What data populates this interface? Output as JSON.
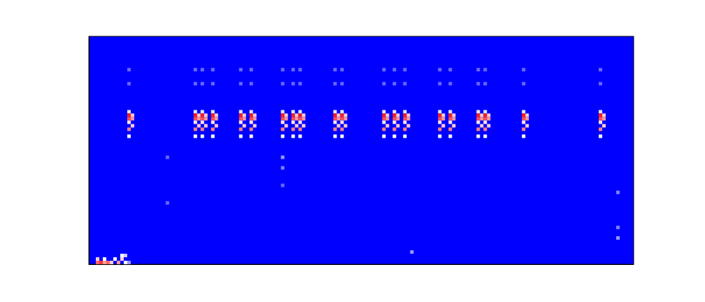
{
  "chart_data": {
    "type": "heatmap",
    "xlim": [
      0,
      156
    ],
    "ylim": [
      0,
      65
    ],
    "xticks": [],
    "yticks": [],
    "tick_labels": false,
    "grid": false,
    "color_range": [
      0,
      1
    ],
    "cells": [
      [
        11,
        55,
        0.2
      ],
      [
        11,
        51,
        0.2
      ],
      [
        11,
        43,
        0.45
      ],
      [
        11,
        42,
        0.95
      ],
      [
        12,
        42,
        0.6
      ],
      [
        11,
        41,
        0.85
      ],
      [
        12,
        41,
        0.7
      ],
      [
        11,
        40,
        0.55
      ],
      [
        12,
        39,
        0.6
      ],
      [
        11,
        38,
        0.75
      ],
      [
        11,
        36,
        0.5
      ],
      [
        30,
        55,
        0.2
      ],
      [
        30,
        51,
        0.2
      ],
      [
        30,
        43,
        0.45
      ],
      [
        30,
        42,
        0.95
      ],
      [
        31,
        42,
        0.6
      ],
      [
        30,
        41,
        0.85
      ],
      [
        31,
        41,
        0.7
      ],
      [
        30,
        40,
        0.55
      ],
      [
        31,
        39,
        0.6
      ],
      [
        30,
        38,
        0.75
      ],
      [
        30,
        36,
        0.5
      ],
      [
        32,
        55,
        0.2
      ],
      [
        32,
        51,
        0.2
      ],
      [
        32,
        43,
        0.45
      ],
      [
        32,
        42,
        0.95
      ],
      [
        33,
        42,
        0.6
      ],
      [
        32,
        41,
        0.85
      ],
      [
        33,
        41,
        0.7
      ],
      [
        32,
        40,
        0.55
      ],
      [
        33,
        39,
        0.6
      ],
      [
        32,
        38,
        0.75
      ],
      [
        32,
        36,
        0.5
      ],
      [
        35,
        55,
        0.2
      ],
      [
        35,
        51,
        0.2
      ],
      [
        35,
        43,
        0.45
      ],
      [
        35,
        42,
        0.95
      ],
      [
        36,
        42,
        0.6
      ],
      [
        35,
        41,
        0.85
      ],
      [
        36,
        41,
        0.7
      ],
      [
        35,
        40,
        0.55
      ],
      [
        36,
        39,
        0.6
      ],
      [
        35,
        38,
        0.75
      ],
      [
        35,
        36,
        0.5
      ],
      [
        43,
        55,
        0.2
      ],
      [
        43,
        51,
        0.2
      ],
      [
        43,
        43,
        0.45
      ],
      [
        43,
        42,
        0.95
      ],
      [
        44,
        42,
        0.6
      ],
      [
        43,
        41,
        0.85
      ],
      [
        44,
        41,
        0.7
      ],
      [
        43,
        40,
        0.55
      ],
      [
        44,
        39,
        0.6
      ],
      [
        43,
        38,
        0.75
      ],
      [
        43,
        36,
        0.5
      ],
      [
        46,
        55,
        0.2
      ],
      [
        46,
        51,
        0.2
      ],
      [
        46,
        43,
        0.45
      ],
      [
        46,
        42,
        0.95
      ],
      [
        47,
        42,
        0.6
      ],
      [
        46,
        41,
        0.85
      ],
      [
        47,
        41,
        0.7
      ],
      [
        46,
        40,
        0.55
      ],
      [
        47,
        39,
        0.6
      ],
      [
        46,
        38,
        0.75
      ],
      [
        46,
        36,
        0.5
      ],
      [
        55,
        55,
        0.2
      ],
      [
        55,
        51,
        0.2
      ],
      [
        55,
        43,
        0.45
      ],
      [
        55,
        42,
        0.95
      ],
      [
        56,
        42,
        0.6
      ],
      [
        55,
        41,
        0.85
      ],
      [
        56,
        41,
        0.7
      ],
      [
        55,
        40,
        0.55
      ],
      [
        56,
        39,
        0.6
      ],
      [
        55,
        38,
        0.75
      ],
      [
        55,
        36,
        0.5
      ],
      [
        58,
        55,
        0.2
      ],
      [
        58,
        51,
        0.2
      ],
      [
        58,
        43,
        0.45
      ],
      [
        58,
        42,
        0.95
      ],
      [
        59,
        42,
        0.6
      ],
      [
        58,
        41,
        0.85
      ],
      [
        59,
        41,
        0.7
      ],
      [
        58,
        40,
        0.55
      ],
      [
        59,
        39,
        0.6
      ],
      [
        58,
        38,
        0.75
      ],
      [
        58,
        36,
        0.5
      ],
      [
        60,
        55,
        0.2
      ],
      [
        60,
        51,
        0.2
      ],
      [
        60,
        43,
        0.45
      ],
      [
        60,
        42,
        0.95
      ],
      [
        61,
        42,
        0.6
      ],
      [
        60,
        41,
        0.85
      ],
      [
        61,
        41,
        0.7
      ],
      [
        60,
        40,
        0.55
      ],
      [
        61,
        39,
        0.6
      ],
      [
        60,
        38,
        0.75
      ],
      [
        60,
        36,
        0.5
      ],
      [
        70,
        55,
        0.2
      ],
      [
        70,
        51,
        0.2
      ],
      [
        70,
        43,
        0.45
      ],
      [
        70,
        42,
        0.95
      ],
      [
        71,
        42,
        0.6
      ],
      [
        70,
        41,
        0.85
      ],
      [
        71,
        41,
        0.7
      ],
      [
        70,
        40,
        0.55
      ],
      [
        71,
        39,
        0.6
      ],
      [
        70,
        38,
        0.75
      ],
      [
        70,
        36,
        0.5
      ],
      [
        72,
        55,
        0.2
      ],
      [
        72,
        51,
        0.2
      ],
      [
        72,
        43,
        0.45
      ],
      [
        72,
        42,
        0.95
      ],
      [
        73,
        42,
        0.6
      ],
      [
        72,
        41,
        0.85
      ],
      [
        73,
        41,
        0.7
      ],
      [
        72,
        40,
        0.55
      ],
      [
        73,
        39,
        0.6
      ],
      [
        72,
        38,
        0.75
      ],
      [
        72,
        36,
        0.5
      ],
      [
        84,
        55,
        0.2
      ],
      [
        84,
        51,
        0.2
      ],
      [
        84,
        43,
        0.45
      ],
      [
        84,
        42,
        0.95
      ],
      [
        85,
        42,
        0.6
      ],
      [
        84,
        41,
        0.85
      ],
      [
        85,
        41,
        0.7
      ],
      [
        84,
        40,
        0.55
      ],
      [
        85,
        39,
        0.6
      ],
      [
        84,
        38,
        0.75
      ],
      [
        84,
        36,
        0.5
      ],
      [
        87,
        55,
        0.2
      ],
      [
        87,
        51,
        0.2
      ],
      [
        87,
        43,
        0.45
      ],
      [
        87,
        42,
        0.95
      ],
      [
        88,
        42,
        0.6
      ],
      [
        87,
        41,
        0.85
      ],
      [
        88,
        41,
        0.7
      ],
      [
        87,
        40,
        0.55
      ],
      [
        88,
        39,
        0.6
      ],
      [
        87,
        38,
        0.75
      ],
      [
        87,
        36,
        0.5
      ],
      [
        90,
        55,
        0.2
      ],
      [
        90,
        51,
        0.2
      ],
      [
        90,
        43,
        0.45
      ],
      [
        90,
        42,
        0.95
      ],
      [
        91,
        42,
        0.6
      ],
      [
        90,
        41,
        0.85
      ],
      [
        91,
        41,
        0.7
      ],
      [
        90,
        40,
        0.55
      ],
      [
        91,
        39,
        0.6
      ],
      [
        90,
        38,
        0.75
      ],
      [
        90,
        36,
        0.5
      ],
      [
        100,
        55,
        0.2
      ],
      [
        100,
        51,
        0.2
      ],
      [
        100,
        43,
        0.45
      ],
      [
        100,
        42,
        0.95
      ],
      [
        101,
        42,
        0.6
      ],
      [
        100,
        41,
        0.85
      ],
      [
        101,
        41,
        0.7
      ],
      [
        100,
        40,
        0.55
      ],
      [
        101,
        39,
        0.6
      ],
      [
        100,
        38,
        0.75
      ],
      [
        100,
        36,
        0.5
      ],
      [
        103,
        55,
        0.2
      ],
      [
        103,
        51,
        0.2
      ],
      [
        103,
        43,
        0.45
      ],
      [
        103,
        42,
        0.95
      ],
      [
        104,
        42,
        0.6
      ],
      [
        103,
        41,
        0.85
      ],
      [
        104,
        41,
        0.7
      ],
      [
        103,
        40,
        0.55
      ],
      [
        104,
        39,
        0.6
      ],
      [
        103,
        38,
        0.75
      ],
      [
        103,
        36,
        0.5
      ],
      [
        111,
        55,
        0.2
      ],
      [
        111,
        51,
        0.2
      ],
      [
        111,
        43,
        0.45
      ],
      [
        111,
        42,
        0.95
      ],
      [
        112,
        42,
        0.6
      ],
      [
        111,
        41,
        0.85
      ],
      [
        112,
        41,
        0.7
      ],
      [
        111,
        40,
        0.55
      ],
      [
        112,
        39,
        0.6
      ],
      [
        111,
        38,
        0.75
      ],
      [
        111,
        36,
        0.5
      ],
      [
        113,
        55,
        0.2
      ],
      [
        113,
        51,
        0.2
      ],
      [
        113,
        43,
        0.45
      ],
      [
        113,
        42,
        0.95
      ],
      [
        114,
        42,
        0.6
      ],
      [
        113,
        41,
        0.85
      ],
      [
        114,
        41,
        0.7
      ],
      [
        113,
        40,
        0.55
      ],
      [
        114,
        39,
        0.6
      ],
      [
        113,
        38,
        0.75
      ],
      [
        113,
        36,
        0.5
      ],
      [
        124,
        55,
        0.2
      ],
      [
        124,
        51,
        0.2
      ],
      [
        124,
        43,
        0.45
      ],
      [
        124,
        42,
        0.95
      ],
      [
        125,
        42,
        0.6
      ],
      [
        124,
        41,
        0.85
      ],
      [
        125,
        41,
        0.7
      ],
      [
        124,
        40,
        0.55
      ],
      [
        125,
        39,
        0.6
      ],
      [
        124,
        38,
        0.75
      ],
      [
        124,
        36,
        0.5
      ],
      [
        146,
        55,
        0.2
      ],
      [
        146,
        51,
        0.2
      ],
      [
        146,
        43,
        0.45
      ],
      [
        146,
        42,
        0.95
      ],
      [
        147,
        42,
        0.6
      ],
      [
        146,
        41,
        0.85
      ],
      [
        147,
        41,
        0.7
      ],
      [
        146,
        40,
        0.55
      ],
      [
        147,
        39,
        0.6
      ],
      [
        146,
        38,
        0.75
      ],
      [
        146,
        36,
        0.5
      ],
      [
        2,
        0,
        0.8
      ],
      [
        2,
        1,
        0.6
      ],
      [
        3,
        0,
        0.9
      ],
      [
        4,
        0,
        0.7
      ],
      [
        4,
        1,
        0.5
      ],
      [
        5,
        0,
        0.8
      ],
      [
        6,
        0,
        0.6
      ],
      [
        7,
        1,
        0.5
      ],
      [
        8,
        0,
        0.7
      ],
      [
        9,
        2,
        0.5
      ],
      [
        9,
        1,
        0.6
      ],
      [
        10,
        0,
        0.5
      ],
      [
        10,
        2,
        0.4
      ],
      [
        11,
        0,
        0.3
      ],
      [
        55,
        30,
        0.3
      ],
      [
        55,
        27,
        0.25
      ],
      [
        55,
        22,
        0.2
      ],
      [
        22,
        30,
        0.2
      ],
      [
        22,
        17,
        0.2
      ],
      [
        151,
        20,
        0.25
      ],
      [
        151,
        10,
        0.25
      ],
      [
        151,
        7,
        0.3
      ],
      [
        92,
        3,
        0.3
      ]
    ]
  }
}
